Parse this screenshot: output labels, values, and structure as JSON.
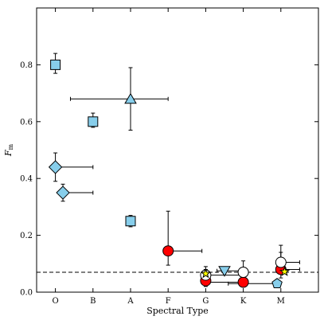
{
  "chart_data": {
    "type": "scatter",
    "title": "",
    "xlabel": "Spectral Type",
    "ylabel": "F",
    "ylabel_sub": "m",
    "categories": [
      "O",
      "B",
      "A",
      "F",
      "G",
      "K",
      "M"
    ],
    "xlim": [
      -0.5,
      7.0
    ],
    "ylim": [
      0.0,
      1.0
    ],
    "yticks": [
      0.0,
      0.2,
      0.4,
      0.6,
      0.8
    ],
    "ytick_labels": [
      "0.0",
      "0.2",
      "0.4",
      "0.6",
      "0.8"
    ],
    "grid": false,
    "legend": "none",
    "reference_line": {
      "y": 0.07,
      "style": "dashed"
    },
    "series": [
      {
        "marker": "square",
        "color": "#87ceeb",
        "points": [
          {
            "x": 0.0,
            "y": 0.8,
            "yerr_lo": 0.03,
            "yerr_hi": 0.04
          },
          {
            "x": 1.0,
            "y": 0.6,
            "yerr_lo": 0.02,
            "yerr_hi": 0.03
          },
          {
            "x": 2.0,
            "y": 0.25,
            "yerr_lo": 0.02,
            "yerr_hi": 0.02
          }
        ]
      },
      {
        "marker": "diamond",
        "color": "#87ceeb",
        "points": [
          {
            "x": 0.0,
            "y": 0.44,
            "xerr_hi": 1.0,
            "yerr_lo": 0.05,
            "yerr_hi": 0.05
          },
          {
            "x": 0.2,
            "y": 0.35,
            "xerr_hi": 0.8,
            "yerr_lo": 0.03,
            "yerr_hi": 0.03
          }
        ]
      },
      {
        "marker": "triangle-up",
        "color": "#87ceeb",
        "points": [
          {
            "x": 2.0,
            "y": 0.68,
            "xerr_lo": 1.6,
            "xerr_hi": 1.0,
            "yerr_lo": 0.11,
            "yerr_hi": 0.11
          }
        ]
      },
      {
        "marker": "circle",
        "color": "#ff0000",
        "points": [
          {
            "x": 3.0,
            "y": 0.145,
            "xerr_hi": 0.9,
            "yerr_lo": 0.05,
            "yerr_hi": 0.14
          },
          {
            "x": 4.0,
            "y": 0.04,
            "yerr_lo": 0.02,
            "yerr_hi": 0.04
          },
          {
            "x": 5.0,
            "y": 0.035,
            "xerr_lo": 1.0
          },
          {
            "x": 6.0,
            "y": 0.08,
            "xerr_hi": 0.5,
            "yerr_lo": 0.03,
            "yerr_hi": 0.06
          }
        ]
      },
      {
        "marker": "circle",
        "color": "#ffffff",
        "points": [
          {
            "x": 4.0,
            "y": 0.06,
            "xerr_hi": 1.0,
            "yerr_lo": 0.03,
            "yerr_hi": 0.03
          },
          {
            "x": 5.0,
            "y": 0.07,
            "yerr_lo": 0.03,
            "yerr_hi": 0.04
          },
          {
            "x": 6.0,
            "y": 0.105,
            "xerr_hi": 0.5,
            "yerr_lo": 0.03,
            "yerr_hi": 0.06
          }
        ]
      },
      {
        "marker": "triangle-down",
        "color": "#87ceeb",
        "points": [
          {
            "x": 4.5,
            "y": 0.075,
            "xerr_lo": 0.2,
            "xerr_hi": 0.5
          }
        ]
      },
      {
        "marker": "star",
        "color": "#ffff00",
        "points": [
          {
            "x": 4.0,
            "y": 0.065
          },
          {
            "x": 6.1,
            "y": 0.072
          }
        ]
      },
      {
        "marker": "pentagon",
        "color": "#87ceeb",
        "points": [
          {
            "x": 5.9,
            "y": 0.03,
            "xerr_lo": 1.3
          }
        ]
      }
    ]
  }
}
